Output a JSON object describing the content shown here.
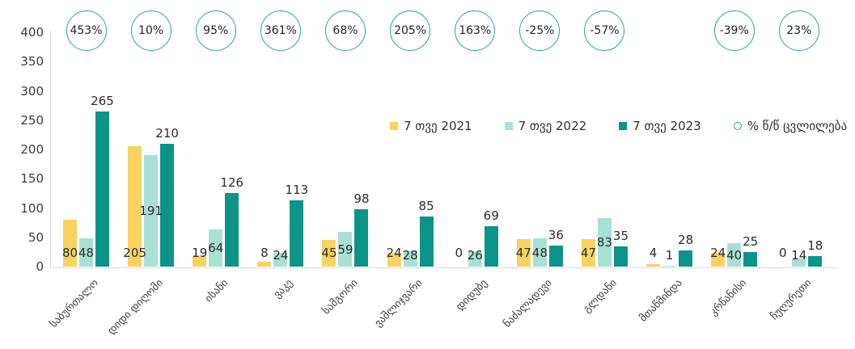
{
  "colors": {
    "series_2021": "#f9d35f",
    "series_2022": "#a9e0d5",
    "series_2023": "#0c9488",
    "pct_circle_stroke": "#2ca493",
    "axis_line": "#dcdcdc",
    "text": "#2b2b2b"
  },
  "chart_data": {
    "type": "bar",
    "title": "",
    "xlabel": "",
    "ylabel": "",
    "ylim": [
      0,
      400
    ],
    "ytick_step": 50,
    "grid": false,
    "legend_position": "middle-right",
    "categories": [
      "საბურთალო",
      "დიდი დიღომი",
      "ისანი",
      "ვაკე",
      "სამგორი",
      "ვაშლიჯვარი",
      "დიდუბე",
      "ნაძალადევი",
      "გლდანი",
      "მთაწმინდა",
      "კრწანისი",
      "ჩუღურეთი"
    ],
    "series": [
      {
        "name": "7 თვე 2021",
        "color": "#f9d35f",
        "values": [
          80,
          205,
          19,
          8,
          45,
          24,
          0,
          47,
          47,
          4,
          24,
          0
        ]
      },
      {
        "name": "7 თვე 2022",
        "color": "#a9e0d5",
        "values": [
          48,
          191,
          64,
          24,
          59,
          28,
          26,
          48,
          83,
          1,
          40,
          14
        ]
      },
      {
        "name": "7 თვე 2023",
        "color": "#0c9488",
        "values": [
          265,
          210,
          126,
          113,
          98,
          85,
          69,
          36,
          35,
          28,
          25,
          18
        ]
      }
    ],
    "pct_change": [
      "453%",
      "10%",
      "95%",
      "361%",
      "68%",
      "205%",
      "163%",
      "-25%",
      "-57%",
      null,
      "-39%",
      "23%"
    ],
    "pct_legend_label": "% წ/წ ცვლილება"
  }
}
